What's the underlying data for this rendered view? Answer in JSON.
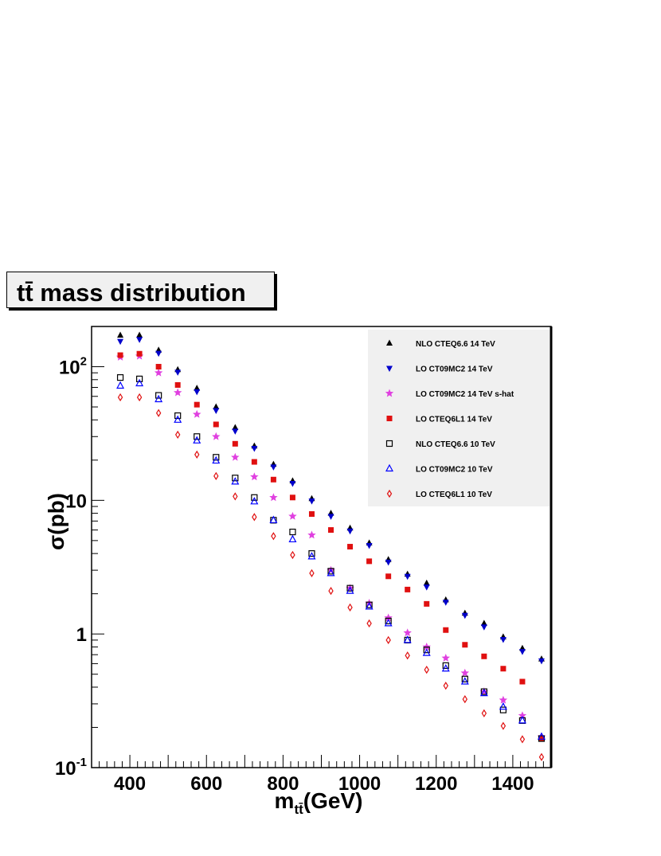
{
  "title": {
    "main": "tt̄ mass distribution"
  },
  "chart_data": {
    "type": "scatter",
    "xlabel": "m",
    "xlabel_sub": "tt̄",
    "xlabel_unit": "(GeV)",
    "ylabel": "σ(pb)",
    "xlim": [
      300,
      1500
    ],
    "ylim": [
      0.1,
      200
    ],
    "yscale": "log",
    "xticks": [
      400,
      600,
      800,
      1000,
      1200,
      1400
    ],
    "yticks": [
      {
        "value": 0.1,
        "label": "10",
        "sup": "-1"
      },
      {
        "value": 1,
        "label": "1",
        "sup": ""
      },
      {
        "value": 10,
        "label": "10",
        "sup": ""
      },
      {
        "value": 100,
        "label": "10",
        "sup": "2"
      }
    ],
    "legend_position": "top-right",
    "x": [
      375,
      425,
      475,
      525,
      575,
      625,
      675,
      725,
      775,
      825,
      875,
      925,
      975,
      1025,
      1075,
      1125,
      1175,
      1225,
      1275,
      1325,
      1375,
      1425,
      1475
    ],
    "series": [
      {
        "name": "NLO CTEQ6.6 14 TeV",
        "marker": "triangle-up-filled",
        "color": "#000000",
        "values": [
          172,
          172,
          133,
          95,
          69,
          50,
          35,
          25.5,
          18.6,
          14,
          10.3,
          8.0,
          6.2,
          4.8,
          3.6,
          2.8,
          2.4,
          1.8,
          1.43,
          1.2,
          0.95,
          0.78,
          0.65
        ]
      },
      {
        "name": "LO CT09MC2 14 TeV",
        "marker": "triangle-down-filled",
        "color": "#0000cc",
        "values": [
          155,
          160,
          126,
          91,
          65,
          47,
          33,
          24.5,
          17.8,
          13.4,
          9.9,
          7.6,
          5.9,
          4.6,
          3.45,
          2.7,
          2.25,
          1.73,
          1.38,
          1.13,
          0.91,
          0.74,
          0.63
        ]
      },
      {
        "name": "LO CT09MC2 14 TeV s-hat",
        "marker": "star",
        "color": "#e040e0",
        "values": [
          118,
          120,
          90,
          64,
          44,
          30,
          21,
          15,
          10.5,
          7.6,
          5.5,
          3.0,
          2.2,
          1.7,
          1.32,
          1.02,
          0.8,
          0.66,
          0.51,
          0.37,
          0.32,
          0.245,
          0.17
        ]
      },
      {
        "name": "LO CTEQ6L1 14 TeV",
        "marker": "square-filled",
        "color": "#e01010",
        "values": [
          122,
          125,
          100,
          73,
          52,
          37,
          26.5,
          19.4,
          14.3,
          10.5,
          7.9,
          6.0,
          4.5,
          3.5,
          2.7,
          2.15,
          1.68,
          1.07,
          0.83,
          0.68,
          0.55,
          0.44,
          0.165
        ]
      },
      {
        "name": "NLO CTEQ6.6 10 TeV",
        "marker": "square-open",
        "color": "#000000",
        "values": [
          83,
          81,
          61,
          43,
          30,
          21,
          14.7,
          10.5,
          7.1,
          5.8,
          4.0,
          2.95,
          2.2,
          1.65,
          1.25,
          0.9,
          0.76,
          0.58,
          0.46,
          0.37,
          0.27,
          0.225,
          0.165
        ]
      },
      {
        "name": "LO CT09MC2 10 TeV",
        "marker": "triangle-up-open",
        "color": "#0000ff",
        "values": [
          72,
          75,
          57,
          40,
          28,
          19.8,
          13.8,
          9.8,
          7.1,
          5.1,
          3.8,
          2.85,
          2.1,
          1.6,
          1.2,
          0.9,
          0.72,
          0.55,
          0.44,
          0.36,
          0.285,
          0.225,
          0.17
        ]
      },
      {
        "name": "LO CTEQ6L1 10 TeV",
        "marker": "diamond-open",
        "color": "#e01010",
        "values": [
          59,
          59,
          45,
          31,
          22,
          15.2,
          10.7,
          7.5,
          5.4,
          3.9,
          2.85,
          2.1,
          1.58,
          1.2,
          0.9,
          0.69,
          0.54,
          0.41,
          0.325,
          0.255,
          0.205,
          0.163,
          0.12
        ]
      }
    ]
  }
}
